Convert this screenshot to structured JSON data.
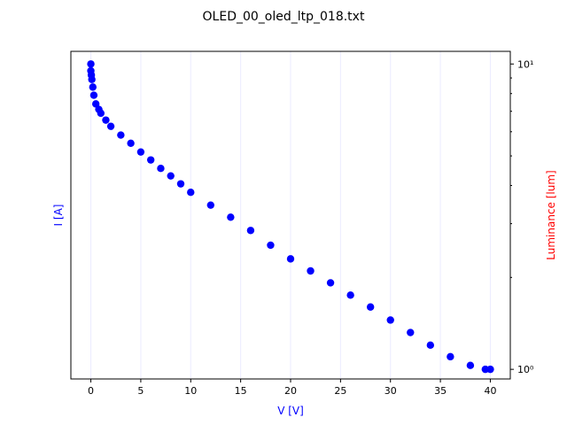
{
  "chart_data": {
    "type": "scatter",
    "title": "OLED_00_oled_ltp_018.txt",
    "xlabel": "V [V]",
    "ylabel_left": "I [A]",
    "ylabel_right": "Luminance [lum]",
    "xlim": [
      -2,
      42
    ],
    "xticks": [
      0,
      5,
      10,
      15,
      20,
      25,
      30,
      35,
      40
    ],
    "xtick_labels": [
      "0",
      "5",
      "10",
      "15",
      "20",
      "25",
      "30",
      "35",
      "40"
    ],
    "right_axis_scale": "log",
    "right_ylim": [
      0.93,
      11.0
    ],
    "right_yticks": [
      1,
      10
    ],
    "right_ytick_labels": [
      "10⁰",
      "10¹"
    ],
    "grid": "x-major",
    "series": [
      {
        "color": "#0000ff",
        "axis": "right",
        "marker": "circle",
        "x": [
          0,
          0,
          0.05,
          0.1,
          0.2,
          0.3,
          0.5,
          0.8,
          1.0,
          1.5,
          2,
          3,
          4,
          5,
          6,
          7,
          8,
          9,
          10,
          12,
          14,
          16,
          18,
          20,
          22,
          24,
          26,
          28,
          30,
          32,
          34,
          36,
          38,
          39.5,
          40
        ],
        "y": [
          10.0,
          9.5,
          9.2,
          8.9,
          8.4,
          7.9,
          7.4,
          7.1,
          6.9,
          6.55,
          6.25,
          5.85,
          5.5,
          5.15,
          4.85,
          4.55,
          4.3,
          4.05,
          3.8,
          3.45,
          3.15,
          2.85,
          2.55,
          2.3,
          2.1,
          1.92,
          1.75,
          1.6,
          1.45,
          1.32,
          1.2,
          1.1,
          1.03,
          1.0,
          1.0
        ]
      }
    ]
  },
  "colors": {
    "left_axis_label": "#0000ff",
    "right_axis_label": "#ff0000",
    "markers": "#0000ff",
    "grid": "#ebebff"
  }
}
